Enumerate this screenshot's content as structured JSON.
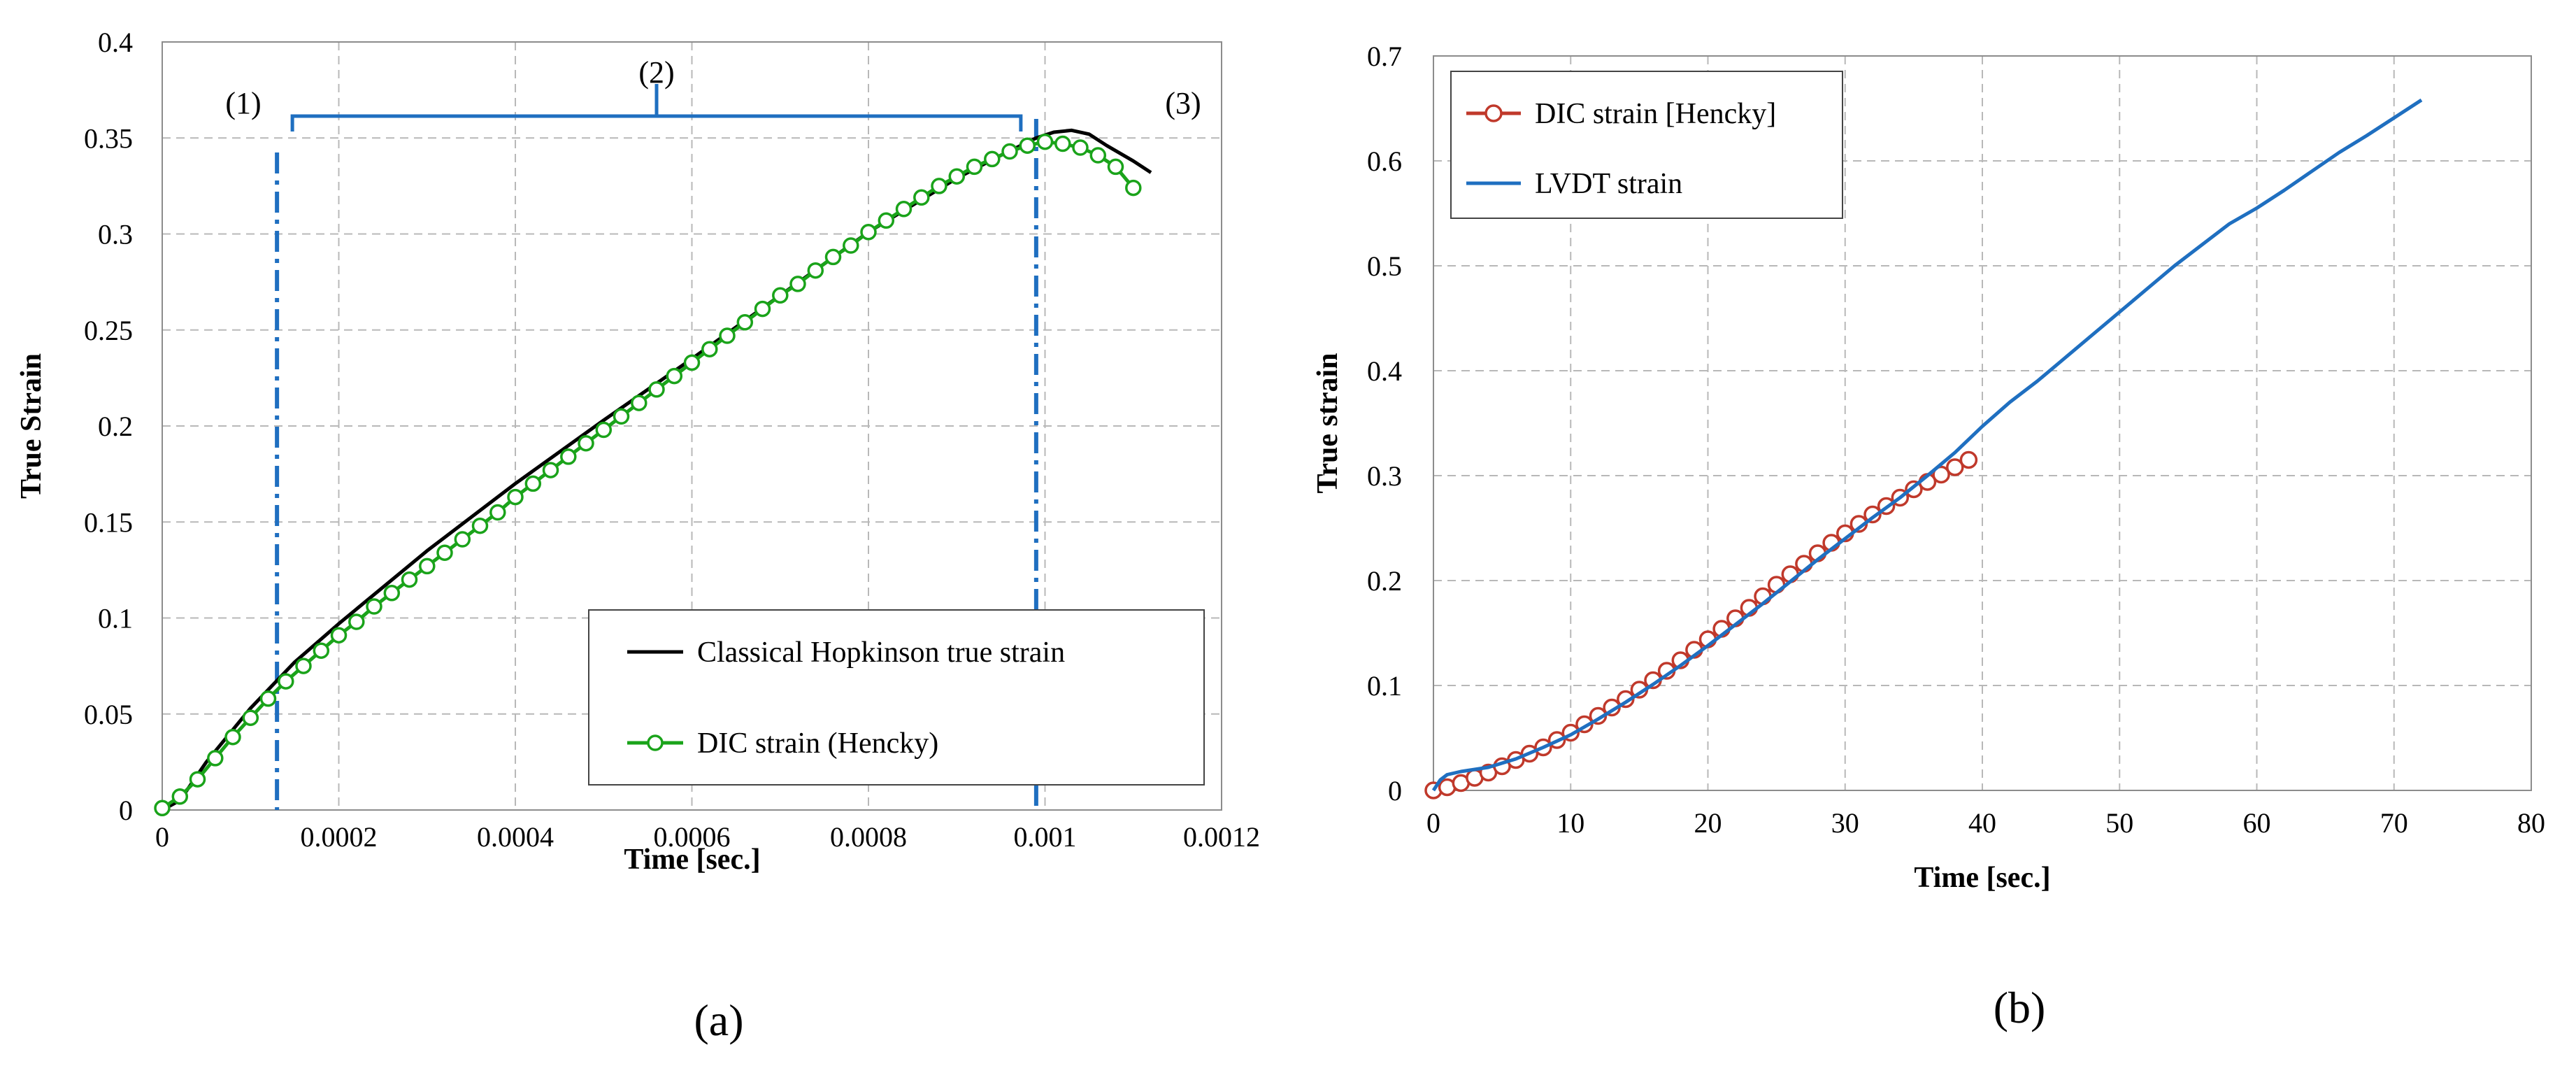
{
  "chart_data": [
    {
      "id": "a",
      "type": "line",
      "panel_label": "(a)",
      "title": "",
      "xlabel": "Time [sec.]",
      "ylabel": "True Strain",
      "xlim": [
        0,
        0.0012
      ],
      "ylim": [
        0,
        0.4
      ],
      "xticks": [
        0,
        0.0002,
        0.0004,
        0.0006,
        0.0008,
        0.001,
        0.0012
      ],
      "xtick_labels": [
        "0",
        "0.0002",
        "0.0004",
        "0.0006",
        "0.0008",
        "0.001",
        "0.0012"
      ],
      "yticks": [
        0,
        0.05,
        0.1,
        0.15,
        0.2,
        0.25,
        0.3,
        0.35,
        0.4
      ],
      "ytick_labels": [
        "0",
        "0.05",
        "0.1",
        "0.15",
        "0.2",
        "0.25",
        "0.3",
        "0.35",
        "0.4"
      ],
      "grid": true,
      "legend_position": "bottom-right",
      "regions": {
        "labels": [
          "(1)",
          "(2)",
          "(3)"
        ],
        "boundaries_x": [
          0.00013,
          0.00099
        ]
      },
      "series": [
        {
          "name": "Classical Hopkinson true strain",
          "color": "#000000",
          "marker": "none",
          "x": [
            0,
            2e-05,
            5e-05,
            0.0001,
            0.00015,
            0.0002,
            0.0003,
            0.0004,
            0.0005,
            0.0006,
            0.0007,
            0.0008,
            0.0009,
            0.00095,
            0.00099,
            0.00101,
            0.00103,
            0.00105,
            0.00107,
            0.0011,
            0.00112
          ],
          "y": [
            0,
            0.005,
            0.025,
            0.053,
            0.077,
            0.097,
            0.135,
            0.17,
            0.203,
            0.235,
            0.268,
            0.301,
            0.329,
            0.341,
            0.35,
            0.353,
            0.354,
            0.352,
            0.346,
            0.338,
            0.332
          ]
        },
        {
          "name": "DIC strain (Hencky)",
          "color": "#1aa31a",
          "marker": "circle",
          "x": [
            0,
            2e-05,
            4e-05,
            6e-05,
            8e-05,
            0.0001,
            0.00012,
            0.00014,
            0.00016,
            0.00018,
            0.0002,
            0.00022,
            0.00024,
            0.00026,
            0.00028,
            0.0003,
            0.00032,
            0.00034,
            0.00036,
            0.00038,
            0.0004,
            0.00042,
            0.00044,
            0.00046,
            0.00048,
            0.0005,
            0.00052,
            0.00054,
            0.00056,
            0.00058,
            0.0006,
            0.00062,
            0.00064,
            0.00066,
            0.00068,
            0.0007,
            0.00072,
            0.00074,
            0.00076,
            0.00078,
            0.0008,
            0.00082,
            0.00084,
            0.00086,
            0.00088,
            0.0009,
            0.00092,
            0.00094,
            0.00096,
            0.00098,
            0.001,
            0.00102,
            0.00104,
            0.00106,
            0.00108,
            0.0011
          ],
          "y": [
            0.001,
            0.007,
            0.016,
            0.027,
            0.038,
            0.048,
            0.058,
            0.067,
            0.075,
            0.083,
            0.091,
            0.098,
            0.106,
            0.113,
            0.12,
            0.127,
            0.134,
            0.141,
            0.148,
            0.155,
            0.163,
            0.17,
            0.177,
            0.184,
            0.191,
            0.198,
            0.205,
            0.212,
            0.219,
            0.226,
            0.233,
            0.24,
            0.247,
            0.254,
            0.261,
            0.268,
            0.274,
            0.281,
            0.288,
            0.294,
            0.301,
            0.307,
            0.313,
            0.319,
            0.325,
            0.33,
            0.335,
            0.339,
            0.343,
            0.346,
            0.348,
            0.347,
            0.345,
            0.341,
            0.335,
            0.324
          ]
        }
      ]
    },
    {
      "id": "b",
      "type": "line",
      "panel_label": "(b)",
      "title": "",
      "xlabel": "Time [sec.]",
      "ylabel": "True strain",
      "xlim": [
        0,
        80
      ],
      "ylim": [
        0,
        0.7
      ],
      "xticks": [
        0,
        10,
        20,
        30,
        40,
        50,
        60,
        70,
        80
      ],
      "xtick_labels": [
        "0",
        "10",
        "20",
        "30",
        "40",
        "50",
        "60",
        "70",
        "80"
      ],
      "yticks": [
        0,
        0.1,
        0.2,
        0.3,
        0.4,
        0.5,
        0.6,
        0.7
      ],
      "ytick_labels": [
        "0",
        "0.1",
        "0.2",
        "0.3",
        "0.4",
        "0.5",
        "0.6",
        "0.7"
      ],
      "grid": true,
      "legend_position": "top-left",
      "series": [
        {
          "name": "DIC strain [Hencky]",
          "color": "#c0392b",
          "marker": "circle",
          "x": [
            0,
            1,
            2,
            3,
            4,
            5,
            6,
            7,
            8,
            9,
            10,
            11,
            12,
            13,
            14,
            15,
            16,
            17,
            18,
            19,
            20,
            21,
            22,
            23,
            24,
            25,
            26,
            27,
            28,
            29,
            30,
            31,
            32,
            33,
            34,
            35,
            36,
            37,
            38,
            39
          ],
          "y": [
            0,
            0.003,
            0.007,
            0.012,
            0.017,
            0.023,
            0.029,
            0.035,
            0.041,
            0.048,
            0.055,
            0.063,
            0.071,
            0.079,
            0.087,
            0.096,
            0.105,
            0.114,
            0.124,
            0.134,
            0.144,
            0.154,
            0.164,
            0.174,
            0.185,
            0.196,
            0.206,
            0.216,
            0.226,
            0.236,
            0.245,
            0.254,
            0.263,
            0.271,
            0.279,
            0.287,
            0.294,
            0.301,
            0.308,
            0.315
          ]
        },
        {
          "name": "LVDT strain",
          "color": "#1f6fc0",
          "marker": "none",
          "x": [
            0,
            0.5,
            1,
            2,
            4,
            6,
            8,
            10,
            12,
            14,
            16,
            18,
            20,
            22,
            24,
            26,
            28,
            30,
            32,
            34,
            36,
            38,
            40,
            42,
            44,
            46,
            48,
            50,
            52,
            54,
            56,
            58,
            60,
            62,
            64,
            66,
            68,
            70,
            72
          ],
          "y": [
            0,
            0.01,
            0.015,
            0.018,
            0.022,
            0.03,
            0.041,
            0.053,
            0.068,
            0.084,
            0.101,
            0.119,
            0.138,
            0.158,
            0.178,
            0.199,
            0.22,
            0.24,
            0.26,
            0.279,
            0.3,
            0.322,
            0.347,
            0.37,
            0.39,
            0.412,
            0.434,
            0.456,
            0.478,
            0.5,
            0.52,
            0.54,
            0.555,
            0.572,
            0.59,
            0.608,
            0.624,
            0.641,
            0.658
          ]
        }
      ]
    }
  ]
}
